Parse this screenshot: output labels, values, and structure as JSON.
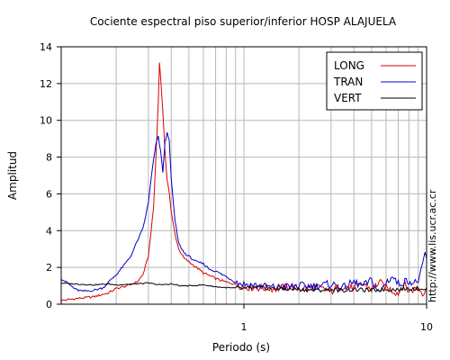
{
  "chart_data": {
    "type": "line",
    "title": "Cociente espectral piso superior/inferior  HOSP ALAJUELA",
    "xlabel": "Periodo (s)",
    "ylabel": "Amplitud",
    "xscale": "log",
    "xlim": [
      0.1,
      10
    ],
    "ylim": [
      0,
      14
    ],
    "xticks": [
      1,
      10
    ],
    "yticks": [
      0,
      2,
      4,
      6,
      8,
      10,
      12,
      14
    ],
    "grid": true,
    "legend_position": "top-right",
    "credit": "http://www.lis.ucr.ac.cr",
    "series": [
      {
        "name": "LONG",
        "color": "#dd0000",
        "points": [
          [
            0.1,
            0.2
          ],
          [
            0.12,
            0.3
          ],
          [
            0.15,
            0.4
          ],
          [
            0.18,
            0.6
          ],
          [
            0.2,
            0.85
          ],
          [
            0.23,
            1.0
          ],
          [
            0.26,
            1.2
          ],
          [
            0.28,
            1.6
          ],
          [
            0.3,
            2.6
          ],
          [
            0.32,
            5.2
          ],
          [
            0.33,
            8.0
          ],
          [
            0.34,
            11.0
          ],
          [
            0.345,
            13.2
          ],
          [
            0.35,
            12.3
          ],
          [
            0.36,
            10.5
          ],
          [
            0.37,
            8.2
          ],
          [
            0.38,
            6.8
          ],
          [
            0.39,
            6.1
          ],
          [
            0.4,
            5.0
          ],
          [
            0.42,
            3.8
          ],
          [
            0.44,
            3.0
          ],
          [
            0.47,
            2.5
          ],
          [
            0.5,
            2.3
          ],
          [
            0.55,
            2.0
          ],
          [
            0.6,
            1.7
          ],
          [
            0.7,
            1.4
          ],
          [
            0.8,
            1.2
          ],
          [
            0.9,
            1.1
          ],
          [
            1.0,
            0.95
          ],
          [
            1.2,
            0.9
          ],
          [
            1.5,
            0.85
          ],
          [
            1.8,
            0.95
          ],
          [
            2.0,
            0.85
          ],
          [
            2.5,
            0.9
          ],
          [
            3.0,
            0.7
          ],
          [
            3.5,
            1.0
          ],
          [
            4.0,
            0.85
          ],
          [
            4.5,
            1.1
          ],
          [
            5.0,
            0.8
          ],
          [
            5.5,
            1.2
          ],
          [
            6.0,
            0.9
          ],
          [
            7.0,
            0.6
          ],
          [
            7.5,
            1.1
          ],
          [
            8.0,
            0.7
          ],
          [
            9.0,
            0.9
          ],
          [
            9.5,
            0.6
          ],
          [
            10.0,
            0.9
          ]
        ]
      },
      {
        "name": "TRAN",
        "color": "#0000cc",
        "points": [
          [
            0.1,
            1.4
          ],
          [
            0.11,
            1.1
          ],
          [
            0.12,
            0.8
          ],
          [
            0.13,
            0.7
          ],
          [
            0.15,
            0.75
          ],
          [
            0.17,
            0.9
          ],
          [
            0.19,
            1.4
          ],
          [
            0.2,
            1.6
          ],
          [
            0.22,
            2.1
          ],
          [
            0.24,
            2.6
          ],
          [
            0.26,
            3.4
          ],
          [
            0.28,
            4.1
          ],
          [
            0.3,
            5.5
          ],
          [
            0.31,
            6.8
          ],
          [
            0.32,
            7.8
          ],
          [
            0.33,
            8.7
          ],
          [
            0.34,
            9.1
          ],
          [
            0.35,
            8.3
          ],
          [
            0.36,
            7.2
          ],
          [
            0.37,
            8.8
          ],
          [
            0.38,
            9.3
          ],
          [
            0.39,
            9.0
          ],
          [
            0.4,
            6.8
          ],
          [
            0.42,
            4.5
          ],
          [
            0.44,
            3.3
          ],
          [
            0.47,
            2.8
          ],
          [
            0.5,
            2.6
          ],
          [
            0.55,
            2.3
          ],
          [
            0.6,
            2.2
          ],
          [
            0.65,
            1.9
          ],
          [
            0.7,
            1.8
          ],
          [
            0.8,
            1.5
          ],
          [
            0.9,
            1.2
          ],
          [
            1.0,
            1.1
          ],
          [
            1.2,
            1.0
          ],
          [
            1.5,
            0.9
          ],
          [
            2.0,
            1.0
          ],
          [
            2.5,
            1.0
          ],
          [
            3.0,
            1.1
          ],
          [
            3.5,
            0.9
          ],
          [
            4.0,
            1.2
          ],
          [
            4.5,
            1.0
          ],
          [
            5.0,
            1.3
          ],
          [
            5.5,
            0.6
          ],
          [
            6.0,
            1.2
          ],
          [
            6.5,
            1.5
          ],
          [
            7.0,
            1.1
          ],
          [
            8.0,
            1.3
          ],
          [
            8.5,
            1.1
          ],
          [
            9.0,
            1.3
          ],
          [
            9.5,
            2.0
          ],
          [
            9.8,
            2.8
          ],
          [
            10.0,
            2.5
          ]
        ]
      },
      {
        "name": "VERT",
        "color": "#000000",
        "points": [
          [
            0.1,
            1.15
          ],
          [
            0.12,
            1.1
          ],
          [
            0.15,
            1.05
          ],
          [
            0.18,
            1.1
          ],
          [
            0.2,
            1.05
          ],
          [
            0.25,
            1.1
          ],
          [
            0.3,
            1.15
          ],
          [
            0.35,
            1.05
          ],
          [
            0.4,
            1.1
          ],
          [
            0.45,
            1.0
          ],
          [
            0.5,
            1.0
          ],
          [
            0.6,
            1.05
          ],
          [
            0.7,
            0.95
          ],
          [
            0.8,
            0.9
          ],
          [
            1.0,
            0.85
          ],
          [
            1.2,
            0.9
          ],
          [
            1.5,
            0.85
          ],
          [
            2.0,
            0.8
          ],
          [
            2.5,
            0.75
          ],
          [
            3.0,
            0.8
          ],
          [
            3.5,
            0.75
          ],
          [
            4.0,
            0.8
          ],
          [
            5.0,
            0.75
          ],
          [
            6.0,
            0.8
          ],
          [
            7.0,
            0.8
          ],
          [
            8.0,
            0.85
          ],
          [
            9.0,
            0.85
          ],
          [
            10.0,
            0.85
          ]
        ]
      }
    ]
  }
}
